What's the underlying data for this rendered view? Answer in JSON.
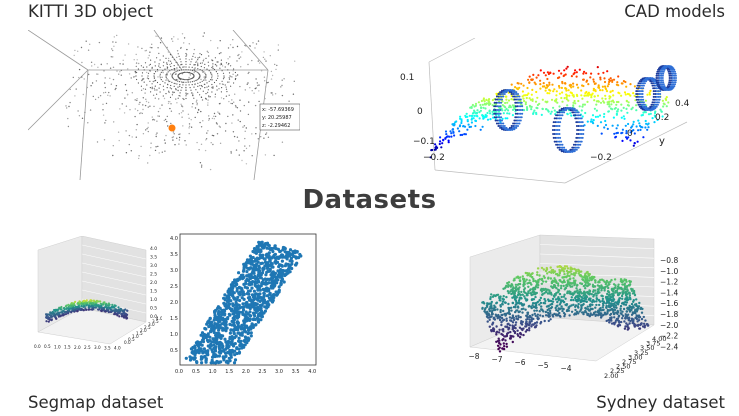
{
  "slide": {
    "title": "Datasets",
    "kitti": {
      "label": "KITTI 3D object",
      "tooltip": [
        "x: -57.69369",
        "y: 20.25987",
        "z: -2.29462"
      ]
    },
    "cad": {
      "label": "CAD models",
      "z_ticks": [
        "0.1",
        "0",
        "−0.1",
        "−0.2"
      ],
      "x_ticks": [
        "0.4",
        "0.2",
        "0",
        "−0.2"
      ],
      "ylabel": "y"
    },
    "segmap": {
      "label": "Segmap dataset",
      "left_z_ticks": [
        "4.0",
        "3.5",
        "3.0",
        "2.5",
        "2.0",
        "1.5",
        "1.0",
        "0.5",
        "0.0"
      ],
      "left_x_ticks": [
        "0.0",
        "0.5",
        "1.0",
        "1.5",
        "2.0",
        "2.5",
        "3.0",
        "3.5",
        "4.0"
      ],
      "right_y_ticks": [
        "4.0",
        "3.5",
        "3.0",
        "2.5",
        "2.0",
        "1.5",
        "1.0",
        "0.5"
      ],
      "right_x_ticks": [
        "0.5",
        "1.0",
        "1.5",
        "2.0",
        "2.5",
        "3.0",
        "3.5",
        "4.0"
      ],
      "right_x0": "0.0"
    },
    "sydney": {
      "label": "Sydney dataset",
      "z_ticks": [
        "−0.8",
        "−1.0",
        "−1.2",
        "−1.4",
        "−1.6",
        "−1.8",
        "−2.0",
        "−2.2",
        "−2.4"
      ],
      "x_ticks": [
        "−8",
        "−7",
        "−6",
        "−5",
        "−4"
      ],
      "y_ticks": [
        "4.00",
        "3.75",
        "3.50",
        "3.25",
        "3.00",
        "2.75",
        "2.50",
        "2.25",
        "2.00"
      ]
    }
  },
  "colors": {
    "title": "#3d3d3d",
    "scatter_blue": "#1f77b4",
    "kitti_point": "#ff7f0e",
    "viridis_low": "#440154",
    "viridis_mid": "#21918c",
    "viridis_high": "#fde725"
  }
}
